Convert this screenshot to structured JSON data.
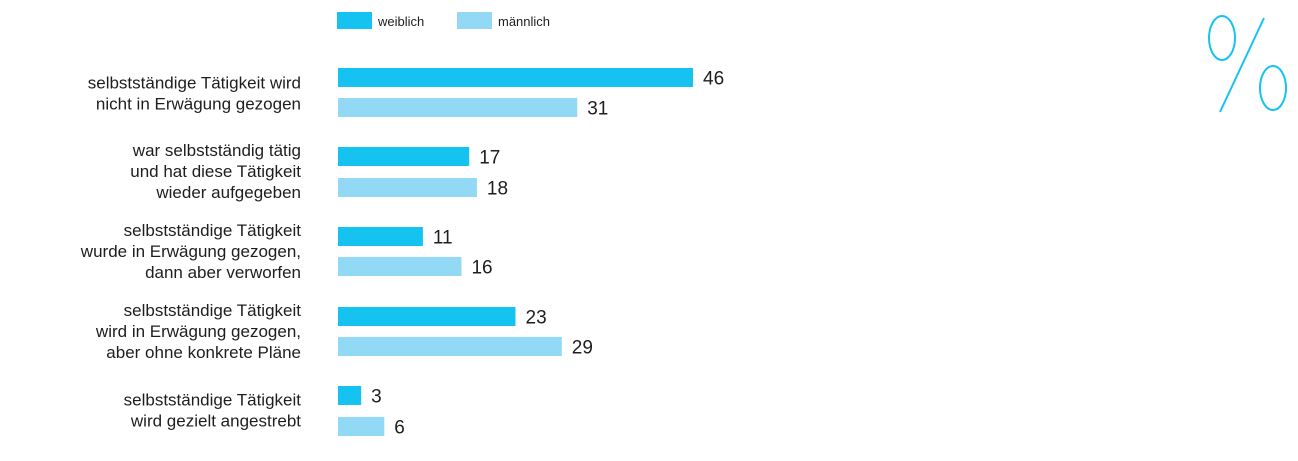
{
  "chart_data": {
    "type": "bar",
    "orientation": "horizontal",
    "unit_symbol": "%",
    "categories": [
      [
        "selbstständige Tätigkeit wird",
        "nicht in Erwägung gezogen"
      ],
      [
        "war selbstständig tätig",
        "und hat diese Tätigkeit",
        "wieder aufgegeben"
      ],
      [
        "selbstständige Tätigkeit",
        "wurde in Erwägung gezogen,",
        "dann aber verworfen"
      ],
      [
        "selbstständige Tätigkeit",
        "wird in Erwägung gezogen,",
        "aber ohne konkrete Pläne"
      ],
      [
        "selbstständige Tätigkeit",
        "wird gezielt angestrebt"
      ]
    ],
    "series": [
      {
        "name": "weiblich",
        "color": "#16c3f0",
        "values": [
          46,
          17,
          11,
          23,
          3
        ]
      },
      {
        "name": "männlich",
        "color": "#91d9f5",
        "values": [
          31,
          18,
          16,
          29,
          6
        ]
      }
    ],
    "legend_position": "top",
    "grid": false
  }
}
